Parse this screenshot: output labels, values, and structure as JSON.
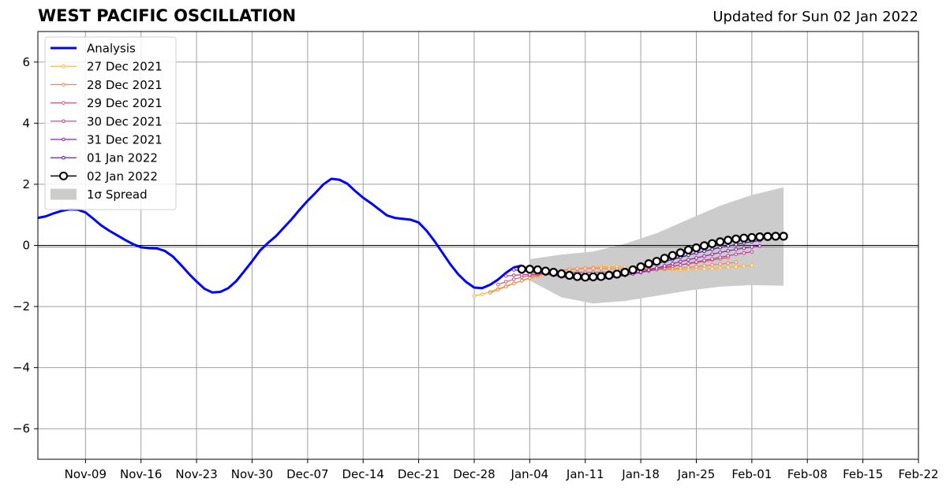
{
  "title": "WEST PACIFIC OSCILLATION",
  "subtitle": "Updated for Sun 02 Jan 2022",
  "chart_data": {
    "type": "line",
    "title": "WEST PACIFIC OSCILLATION",
    "subtitle": "Updated for Sun 02 Jan 2022",
    "xlabel": "",
    "ylabel": "",
    "xlim": [
      "2021-11-03",
      "2022-02-22"
    ],
    "ylim": [
      -7,
      7
    ],
    "grid": true,
    "legend_position": "upper-left",
    "x_tick_labels": [
      {
        "date": "2021-11-09",
        "label": "Nov-09"
      },
      {
        "date": "2021-11-16",
        "label": "Nov-16"
      },
      {
        "date": "2021-11-23",
        "label": "Nov-23"
      },
      {
        "date": "2021-11-30",
        "label": "Nov-30"
      },
      {
        "date": "2021-12-07",
        "label": "Dec-07"
      },
      {
        "date": "2021-12-14",
        "label": "Dec-14"
      },
      {
        "date": "2021-12-21",
        "label": "Dec-21"
      },
      {
        "date": "2021-12-28",
        "label": "Dec-28"
      },
      {
        "date": "2022-01-04",
        "label": "Jan-04"
      },
      {
        "date": "2022-01-11",
        "label": "Jan-11"
      },
      {
        "date": "2022-01-18",
        "label": "Jan-18"
      },
      {
        "date": "2022-01-25",
        "label": "Jan-25"
      },
      {
        "date": "2022-02-01",
        "label": "Feb-01"
      },
      {
        "date": "2022-02-08",
        "label": "Feb-08"
      },
      {
        "date": "2022-02-15",
        "label": "Feb-15"
      },
      {
        "date": "2022-02-22",
        "label": "Feb-22"
      }
    ],
    "y_ticks": [
      -6,
      -4,
      -2,
      0,
      2,
      4,
      6
    ],
    "y_tick_labels": [
      "−6",
      "−4",
      "−2",
      "0",
      "2",
      "4",
      "6"
    ],
    "analysis": {
      "name": "Analysis",
      "color": "#0000ff",
      "start_date": "2021-11-03",
      "values": [
        0.9,
        0.95,
        1.05,
        1.13,
        1.18,
        1.17,
        1.08,
        0.87,
        0.65,
        0.48,
        0.33,
        0.18,
        0.04,
        -0.06,
        -0.09,
        -0.1,
        -0.18,
        -0.36,
        -0.63,
        -0.92,
        -1.18,
        -1.42,
        -1.54,
        -1.52,
        -1.4,
        -1.17,
        -0.85,
        -0.52,
        -0.17,
        0.08,
        0.3,
        0.58,
        0.86,
        1.17,
        1.46,
        1.72,
        2.0,
        2.18,
        2.15,
        2.02,
        1.78,
        1.56,
        1.38,
        1.18,
        0.98,
        0.9,
        0.87,
        0.84,
        0.75,
        0.48,
        0.14,
        -0.24,
        -0.62,
        -0.95,
        -1.2,
        -1.38,
        -1.4,
        -1.29,
        -1.12,
        -0.9,
        -0.72,
        -0.66
      ]
    },
    "forecasts": [
      {
        "name": "27 Dec 2021",
        "color": "#fbb034",
        "start_date": "2021-12-28",
        "values": [
          -1.65,
          -1.6,
          -1.52,
          -1.42,
          -1.33,
          -1.24,
          -1.16,
          -1.08,
          -1.01,
          -0.95,
          -0.9,
          -0.85,
          -0.81,
          -0.77,
          -0.74,
          -0.72,
          -0.7,
          -0.7,
          -0.7,
          -0.71,
          -0.72,
          -0.74,
          -0.76,
          -0.78,
          -0.79,
          -0.8,
          -0.8,
          -0.79,
          -0.78,
          -0.77,
          -0.76,
          -0.74,
          -0.72,
          -0.7,
          -0.68,
          -0.65
        ]
      },
      {
        "name": "28 Dec 2021",
        "color": "#f7844a",
        "start_date": "2021-12-30",
        "values": [
          -1.55,
          -1.45,
          -1.35,
          -1.25,
          -1.15,
          -1.06,
          -0.98,
          -0.91,
          -0.85,
          -0.81,
          -0.78,
          -0.76,
          -0.75,
          -0.75,
          -0.75,
          -0.76,
          -0.77,
          -0.78,
          -0.79,
          -0.8,
          -0.8,
          -0.79,
          -0.78,
          -0.76,
          -0.74,
          -0.72,
          -0.7,
          -0.67,
          -0.64,
          -0.61,
          -0.58,
          -0.55
        ]
      },
      {
        "name": "29 Dec 2021",
        "color": "#e05574",
        "start_date": "2021-12-31",
        "values": [
          -1.28,
          -1.19,
          -1.11,
          -1.04,
          -0.99,
          -0.95,
          -0.92,
          -0.9,
          -0.89,
          -0.88,
          -0.88,
          -0.88,
          -0.88,
          -0.88,
          -0.87,
          -0.86,
          -0.84,
          -0.82,
          -0.8,
          -0.77,
          -0.74,
          -0.71,
          -0.68,
          -0.64,
          -0.6,
          -0.56,
          -0.52,
          -0.48,
          -0.44,
          -0.4
        ]
      },
      {
        "name": "30 Dec 2021",
        "color": "#c3378f",
        "start_date": "2022-01-01",
        "values": [
          -1.0,
          -0.98,
          -0.96,
          -0.95,
          -0.94,
          -0.93,
          -0.93,
          -0.93,
          -0.94,
          -0.95,
          -0.97,
          -0.98,
          -0.99,
          -0.99,
          -0.98,
          -0.96,
          -0.93,
          -0.89,
          -0.84,
          -0.79,
          -0.74,
          -0.69,
          -0.64,
          -0.59,
          -0.54,
          -0.49,
          -0.44,
          -0.39,
          -0.34,
          -0.29,
          -0.25,
          -0.21
        ]
      },
      {
        "name": "31 Dec 2021",
        "color": "#8b1ea8",
        "start_date": "2022-01-02",
        "values": [
          -0.8,
          -0.83,
          -0.86,
          -0.9,
          -0.94,
          -0.98,
          -1.03,
          -1.07,
          -1.1,
          -1.12,
          -1.12,
          -1.1,
          -1.07,
          -1.03,
          -0.98,
          -0.93,
          -0.87,
          -0.81,
          -0.74,
          -0.67,
          -0.6,
          -0.53,
          -0.47,
          -0.41,
          -0.35,
          -0.29,
          -0.23,
          -0.18,
          -0.13,
          -0.09,
          -0.05,
          -0.02
        ]
      },
      {
        "name": "01 Jan 2022",
        "color": "#4b0f96",
        "start_date": "2022-01-03",
        "values": [
          -0.75,
          -0.8,
          -0.84,
          -0.88,
          -0.92,
          -0.96,
          -0.98,
          -0.99,
          -0.99,
          -0.98,
          -0.96,
          -0.93,
          -0.89,
          -0.84,
          -0.79,
          -0.73,
          -0.67,
          -0.6,
          -0.53,
          -0.46,
          -0.39,
          -0.32,
          -0.25,
          -0.19,
          -0.13,
          -0.07,
          -0.02,
          0.03,
          0.08,
          0.12,
          0.16
        ]
      },
      {
        "name": "02 Jan 2022",
        "color": "#000000",
        "start_date": "2022-01-03",
        "values": [
          -0.78,
          -0.78,
          -0.8,
          -0.84,
          -0.88,
          -0.93,
          -0.98,
          -1.02,
          -1.04,
          -1.03,
          -1.02,
          -0.98,
          -0.94,
          -0.88,
          -0.8,
          -0.7,
          -0.6,
          -0.52,
          -0.42,
          -0.33,
          -0.24,
          -0.15,
          -0.08,
          -0.01,
          0.06,
          0.12,
          0.17,
          0.21,
          0.24,
          0.26,
          0.28,
          0.29,
          0.3,
          0.3
        ]
      }
    ],
    "spread": {
      "name": "1σ Spread",
      "color": "#cccccc",
      "dates": [
        "2022-01-04",
        "2022-01-08",
        "2022-01-12",
        "2022-01-16",
        "2022-01-20",
        "2022-01-24",
        "2022-01-28",
        "2022-02-01",
        "2022-02-05"
      ],
      "upper": [
        -0.45,
        -0.3,
        -0.2,
        0.05,
        0.4,
        0.85,
        1.3,
        1.65,
        1.9
      ],
      "lower": [
        -1.15,
        -1.7,
        -1.9,
        -1.82,
        -1.65,
        -1.48,
        -1.35,
        -1.3,
        -1.32
      ]
    },
    "legend": [
      {
        "label": "Analysis",
        "kind": "analysis",
        "color": "#0000ff"
      },
      {
        "label": "27 Dec 2021",
        "kind": "forecast",
        "color": "#fbb034"
      },
      {
        "label": "28 Dec 2021",
        "kind": "forecast",
        "color": "#f7844a"
      },
      {
        "label": "29 Dec 2021",
        "kind": "forecast",
        "color": "#e05574"
      },
      {
        "label": "30 Dec 2021",
        "kind": "forecast",
        "color": "#c3378f"
      },
      {
        "label": "31 Dec 2021",
        "kind": "forecast",
        "color": "#8b1ea8"
      },
      {
        "label": "01 Jan 2022",
        "kind": "forecast",
        "color": "#4b0f96"
      },
      {
        "label": "02 Jan 2022",
        "kind": "latest",
        "color": "#000000"
      },
      {
        "label": "1σ Spread",
        "kind": "spread",
        "color": "#cccccc"
      }
    ]
  }
}
